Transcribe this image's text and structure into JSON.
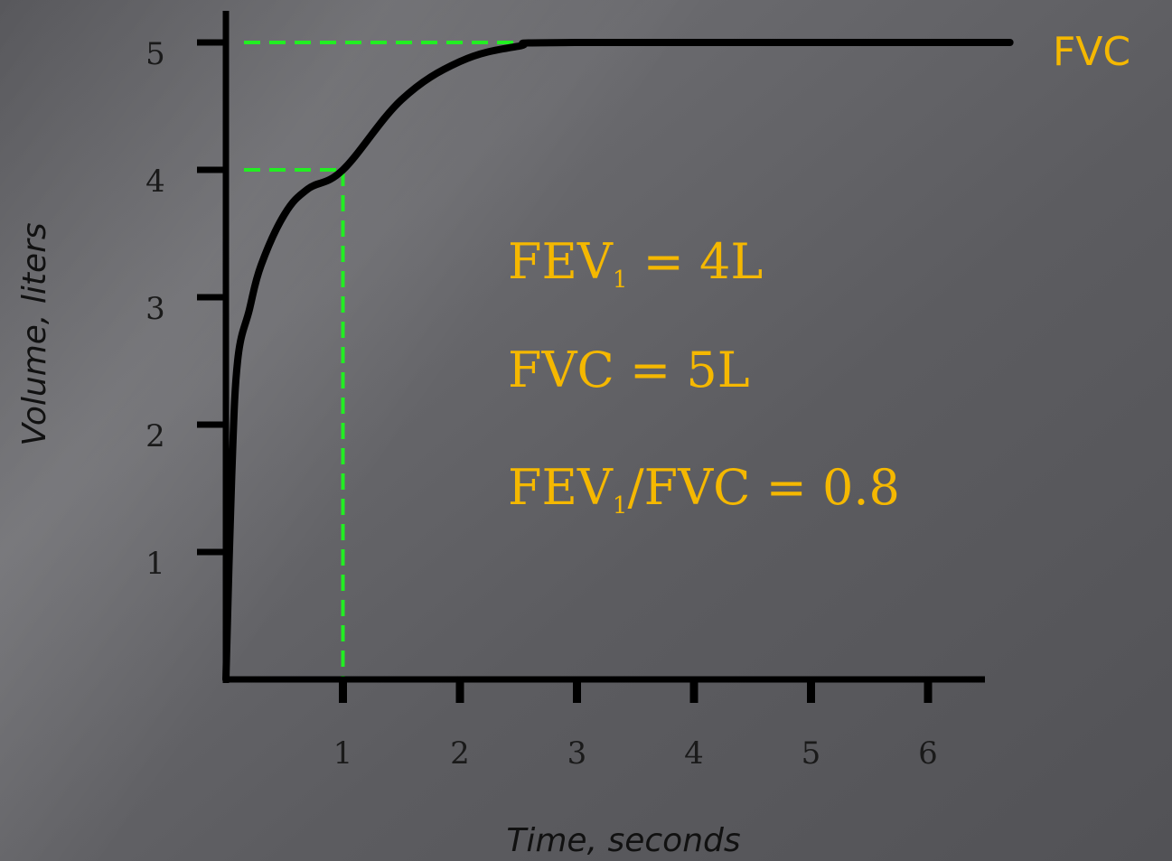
{
  "chart_data": {
    "type": "line",
    "xlabel": "Time, seconds",
    "ylabel": "Volume, liters",
    "xlim": [
      0,
      6.5
    ],
    "ylim": [
      0,
      5
    ],
    "x_ticks": [
      "1",
      "2",
      "3",
      "4",
      "5",
      "6"
    ],
    "y_ticks": [
      "1",
      "2",
      "3",
      "4",
      "5"
    ],
    "grid": false,
    "series": [
      {
        "x": [
          0,
          0.05,
          0.1,
          0.2,
          0.3,
          0.5,
          0.7,
          1.0,
          1.5,
          2.0,
          2.5,
          3.0,
          6.7
        ],
        "values": [
          0,
          1.6,
          2.5,
          2.9,
          3.25,
          3.65,
          3.85,
          4.0,
          4.55,
          4.85,
          4.97,
          5.0,
          5.0
        ]
      }
    ],
    "reference_lines": [
      {
        "type": "horizontal",
        "y": 5,
        "x_from": 0,
        "x_to": 2.5
      },
      {
        "type": "horizontal",
        "y": 4,
        "x_from": 0,
        "x_to": 1
      },
      {
        "type": "vertical",
        "x": 1,
        "y_from": 0,
        "y_to": 4
      }
    ],
    "line_label": "FVC"
  },
  "annotations": {
    "fev1_prefix": "FEV",
    "fev1_sub": "1",
    "fev1_rest": " = 4L",
    "fvc_line": "FVC  = 5L",
    "ratio_prefix": "FEV",
    "ratio_sub": "1",
    "ratio_rest": "/FVC = 0.8"
  },
  "colors": {
    "curve": "#000000",
    "axes": "#000000",
    "reference": "#22ee22",
    "annotation": "#f5b800"
  }
}
